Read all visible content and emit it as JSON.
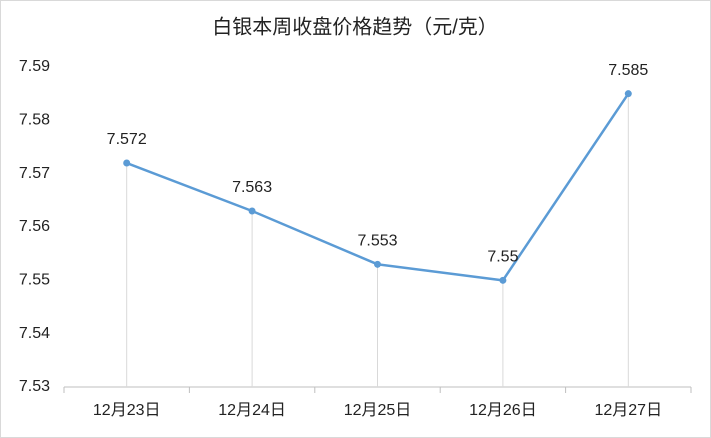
{
  "chart_data": {
    "type": "line",
    "title": "白银本周收盘价格趋势（元/克）",
    "categories": [
      "12月23日",
      "12月24日",
      "12月25日",
      "12月26日",
      "12月27日"
    ],
    "values": [
      7.572,
      7.563,
      7.553,
      7.55,
      7.585
    ],
    "color": "#5b9bd5",
    "ylim": [
      7.53,
      7.59
    ],
    "yticks": [
      7.53,
      7.54,
      7.55,
      7.56,
      7.57,
      7.58,
      7.59
    ],
    "drop_lines": true
  }
}
